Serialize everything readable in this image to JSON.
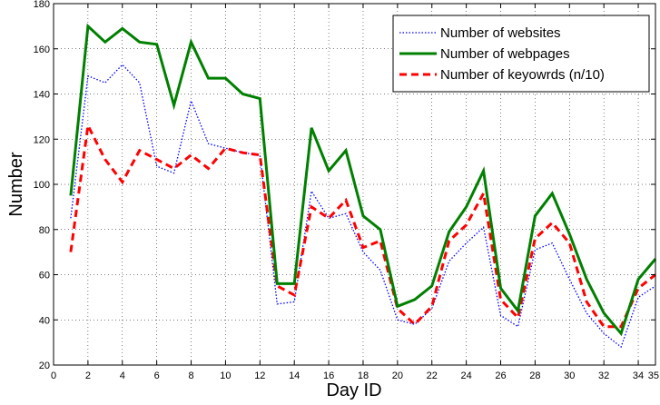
{
  "chart_data": {
    "type": "line",
    "xlabel": "Day ID",
    "ylabel": "Number",
    "xlim": [
      0,
      35
    ],
    "ylim": [
      20,
      180
    ],
    "x_ticks": [
      0,
      2,
      4,
      6,
      8,
      10,
      12,
      14,
      16,
      18,
      20,
      22,
      24,
      26,
      28,
      30,
      32,
      34,
      35
    ],
    "y_ticks": [
      20,
      40,
      60,
      80,
      100,
      120,
      140,
      160,
      180
    ],
    "grid": true,
    "legend_position": "top-right",
    "x": [
      1,
      2,
      3,
      4,
      5,
      6,
      7,
      8,
      9,
      10,
      11,
      12,
      13,
      14,
      15,
      16,
      17,
      18,
      19,
      20,
      21,
      22,
      23,
      24,
      25,
      26,
      27,
      28,
      29,
      30,
      31,
      32,
      33,
      34,
      35
    ],
    "series": [
      {
        "name": "Number of websites",
        "color": "#0000ff",
        "style": "dotted",
        "values": [
          85,
          148,
          145,
          153,
          145,
          108,
          105,
          137,
          118,
          116,
          114,
          113,
          47,
          48,
          97,
          85,
          87,
          70,
          62,
          40,
          38,
          45,
          66,
          74,
          81,
          42,
          37,
          71,
          74,
          58,
          43,
          34,
          28,
          50,
          55
        ]
      },
      {
        "name": "Number of webpages",
        "color": "#008000",
        "style": "solid",
        "values": [
          95,
          170,
          163,
          169,
          163,
          162,
          135,
          163,
          147,
          147,
          140,
          138,
          56,
          56,
          125,
          106,
          115,
          86,
          80,
          46,
          49,
          55,
          79,
          90,
          106,
          54,
          44,
          86,
          96,
          78,
          58,
          43,
          34,
          58,
          67
        ]
      },
      {
        "name": "Number of keyowrds (n/10)",
        "color": "#ff0000",
        "style": "dashed",
        "values": [
          70,
          126,
          111,
          101,
          115,
          111,
          107,
          113,
          107,
          116,
          114,
          113,
          55,
          51,
          90,
          85,
          93,
          72,
          75,
          45,
          38,
          46,
          75,
          82,
          96,
          49,
          41,
          76,
          83,
          74,
          48,
          37,
          37,
          54,
          60
        ]
      }
    ]
  }
}
